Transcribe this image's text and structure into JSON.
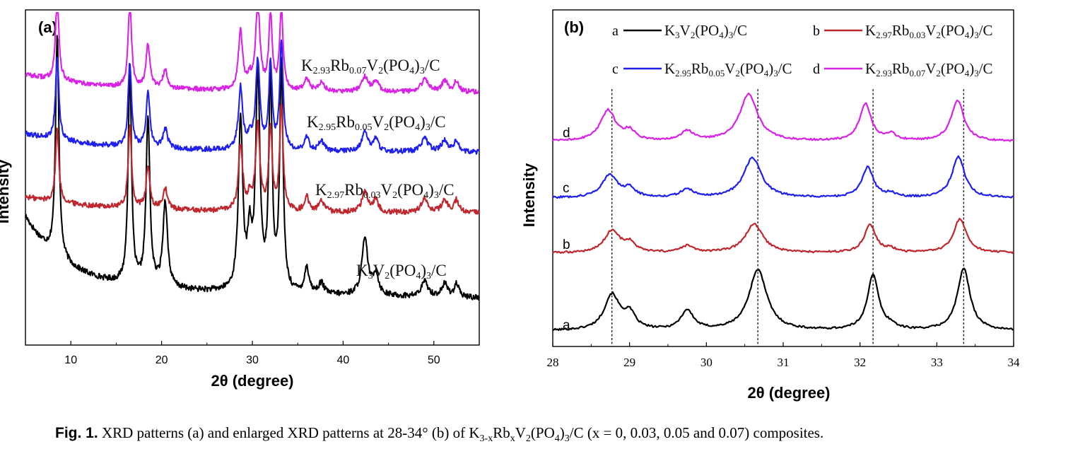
{
  "caption": {
    "label": "Fig. 1.",
    "text": "XRD patterns (a) and enlarged XRD patterns at 28-34° (b) of K3-xRbxV2(PO4)3/C (x = 0, 0.03, 0.05 and 0.07) composites."
  },
  "chart_data": [
    {
      "type": "line",
      "panel_label": "(a)",
      "xlabel": "2θ (degree)",
      "ylabel": "Intensity",
      "xlim": [
        5,
        55
      ],
      "xticks": [
        10,
        20,
        30,
        40,
        50
      ],
      "yticks": [],
      "grid": false,
      "peaks_2theta": [
        8.5,
        16.5,
        18.5,
        20.4,
        28.7,
        29.7,
        30.6,
        32.0,
        33.2,
        36.0,
        37.6,
        42.4,
        43.6,
        49.0,
        51.2,
        52.5
      ],
      "series": [
        {
          "name": "K3V2(PO4)3/C",
          "color": "#000000",
          "offset": 0,
          "x": [
            5,
            8.5,
            16.5,
            18.5,
            20.4,
            28.7,
            30.6,
            32.0,
            33.2,
            42.4,
            55
          ],
          "y": [
            5.0,
            5.2,
            5.0,
            3.9,
            2.0,
            4.0,
            5.0,
            4.9,
            5.2,
            1.3,
            0.1
          ]
        },
        {
          "name": "K2.97Rb0.03V2(PO4)3/C",
          "color": "#c0262d",
          "offset": 1,
          "x": [
            5,
            8.5,
            16.5,
            18.5,
            20.4,
            28.7,
            30.6,
            32.0,
            33.2,
            42.4,
            55
          ],
          "y": [
            0.8,
            1.8,
            2.0,
            1.0,
            0.5,
            1.6,
            2.1,
            2.0,
            2.6,
            0.5,
            0.0
          ]
        },
        {
          "name": "K2.95Rb0.05V2(PO4)3/C",
          "color": "#1f1fef",
          "offset": 2,
          "x": [
            5,
            8.5,
            16.5,
            18.5,
            20.4,
            28.7,
            30.6,
            32.0,
            33.2,
            42.4,
            55
          ],
          "y": [
            1.1,
            2.2,
            2.2,
            1.4,
            0.5,
            1.6,
            2.3,
            2.2,
            2.8,
            0.5,
            0.0
          ]
        },
        {
          "name": "K2.93Rb0.07V2(PO4)3/C",
          "color": "#d822e6",
          "offset": 3,
          "x": [
            5,
            8.5,
            16.5,
            18.5,
            20.4,
            28.7,
            30.6,
            32.0,
            33.2,
            42.4,
            55
          ],
          "y": [
            1.1,
            2.4,
            2.4,
            1.2,
            0.5,
            1.6,
            2.4,
            2.1,
            2.2,
            0.4,
            0.0
          ]
        }
      ],
      "annotations": [
        {
          "series": 3,
          "parts": [
            [
              "K",
              ""
            ],
            [
              "2.93",
              "sub"
            ],
            [
              "Rb",
              ""
            ],
            [
              "0.07",
              "sub"
            ],
            [
              "V",
              ""
            ],
            [
              "2",
              "sub"
            ],
            [
              "(PO",
              ""
            ],
            [
              "4",
              "sub"
            ],
            [
              ")",
              ""
            ],
            [
              "3",
              "sub"
            ],
            [
              "/C",
              ""
            ]
          ]
        },
        {
          "series": 2,
          "parts": [
            [
              "K",
              ""
            ],
            [
              "2.95",
              "sub"
            ],
            [
              "Rb",
              ""
            ],
            [
              "0.05",
              "sub"
            ],
            [
              "V",
              ""
            ],
            [
              "2",
              "sub"
            ],
            [
              "(PO",
              ""
            ],
            [
              "4",
              "sub"
            ],
            [
              ")",
              ""
            ],
            [
              "3",
              "sub"
            ],
            [
              "/C",
              ""
            ]
          ]
        },
        {
          "series": 1,
          "parts": [
            [
              "K",
              ""
            ],
            [
              "2.97",
              "sub"
            ],
            [
              "Rb",
              ""
            ],
            [
              "0.03",
              "sub"
            ],
            [
              "V",
              ""
            ],
            [
              "2",
              "sub"
            ],
            [
              "(PO",
              ""
            ],
            [
              "4",
              "sub"
            ],
            [
              ")",
              ""
            ],
            [
              "3",
              "sub"
            ],
            [
              "/C",
              ""
            ]
          ]
        },
        {
          "series": 0,
          "parts": [
            [
              "K",
              ""
            ],
            [
              "3",
              "sub"
            ],
            [
              "V",
              ""
            ],
            [
              "2",
              "sub"
            ],
            [
              "(PO",
              ""
            ],
            [
              "4",
              "sub"
            ],
            [
              ")",
              ""
            ],
            [
              "3",
              "sub"
            ],
            [
              "/C",
              ""
            ]
          ]
        }
      ]
    },
    {
      "type": "line",
      "panel_label": "(b)",
      "xlabel": "2θ (degree)",
      "ylabel": "Intensity",
      "xlim": [
        28,
        34
      ],
      "xticks": [
        28,
        29,
        30,
        31,
        32,
        33,
        34
      ],
      "yticks": [],
      "grid": false,
      "reference_lines_2theta": [
        28.77,
        30.67,
        32.17,
        33.35
      ],
      "series": [
        {
          "name": "K3V2(PO4)3/C",
          "letter": "a",
          "color": "#000000",
          "offset": 0,
          "x": [
            28,
            28.77,
            29.0,
            29.75,
            30.1,
            30.67,
            31.5,
            32.17,
            32.8,
            33.35,
            34
          ],
          "y": [
            0.2,
            1.0,
            0.78,
            0.55,
            0.22,
            1.72,
            0.16,
            1.55,
            0.06,
            1.75,
            0.0
          ]
        },
        {
          "name": "K2.97Rb0.03V2(PO4)3/C",
          "letter": "b",
          "color": "#c0262d",
          "offset": 1,
          "x": [
            28,
            28.77,
            29.0,
            29.75,
            30.1,
            30.62,
            31.5,
            32.13,
            32.8,
            33.3,
            34
          ],
          "y": [
            0.05,
            0.6,
            0.45,
            0.18,
            0.15,
            0.78,
            0.1,
            0.76,
            0.06,
            0.92,
            0.0
          ]
        },
        {
          "name": "K2.95Rb0.05V2(PO4)3/C",
          "letter": "c",
          "color": "#1f1fef",
          "offset": 2,
          "x": [
            28,
            28.74,
            29.0,
            29.75,
            30.1,
            30.6,
            31.5,
            32.1,
            32.8,
            33.28,
            34
          ],
          "y": [
            0.15,
            0.62,
            0.42,
            0.22,
            0.13,
            1.08,
            0.08,
            0.82,
            0.05,
            1.12,
            0.0
          ]
        },
        {
          "name": "K2.93Rb0.07V2(PO4)3/C",
          "letter": "d",
          "color": "#d822e6",
          "offset": 3,
          "x": [
            28,
            28.72,
            29.0,
            29.75,
            30.1,
            30.55,
            31.5,
            32.07,
            32.8,
            33.27,
            34
          ],
          "y": [
            0.18,
            0.9,
            0.48,
            0.28,
            0.18,
            1.38,
            0.08,
            1.1,
            0.12,
            1.2,
            0.0
          ]
        }
      ],
      "legend": [
        {
          "letter": "a",
          "parts": [
            [
              "K",
              ""
            ],
            [
              "3",
              "sub"
            ],
            [
              "V",
              ""
            ],
            [
              "2",
              "sub"
            ],
            [
              "(PO",
              ""
            ],
            [
              "4",
              "sub"
            ],
            [
              ")",
              ""
            ],
            [
              "3",
              "sub"
            ],
            [
              "/C",
              ""
            ]
          ]
        },
        {
          "letter": "b",
          "parts": [
            [
              "K",
              ""
            ],
            [
              "2.97",
              "sub"
            ],
            [
              "Rb",
              ""
            ],
            [
              "0.03",
              "sub"
            ],
            [
              "V",
              ""
            ],
            [
              "2",
              "sub"
            ],
            [
              "(PO",
              ""
            ],
            [
              "4",
              "sub"
            ],
            [
              ")",
              ""
            ],
            [
              "3",
              "sub"
            ],
            [
              "/C",
              ""
            ]
          ]
        },
        {
          "letter": "c",
          "parts": [
            [
              "K",
              ""
            ],
            [
              "2.95",
              "sub"
            ],
            [
              "Rb",
              ""
            ],
            [
              "0.05",
              "sub"
            ],
            [
              "V",
              ""
            ],
            [
              "2",
              "sub"
            ],
            [
              "(PO",
              ""
            ],
            [
              "4",
              "sub"
            ],
            [
              ")",
              ""
            ],
            [
              "3",
              "sub"
            ],
            [
              "/C",
              ""
            ]
          ]
        },
        {
          "letter": "d",
          "parts": [
            [
              "K",
              ""
            ],
            [
              "2.93",
              "sub"
            ],
            [
              "Rb",
              ""
            ],
            [
              "0.07",
              "sub"
            ],
            [
              "V",
              ""
            ],
            [
              "2",
              "sub"
            ],
            [
              "(PO",
              ""
            ],
            [
              "4",
              "sub"
            ],
            [
              ")",
              ""
            ],
            [
              "3",
              "sub"
            ],
            [
              "/C",
              ""
            ]
          ]
        }
      ],
      "legend_position": "top"
    }
  ]
}
